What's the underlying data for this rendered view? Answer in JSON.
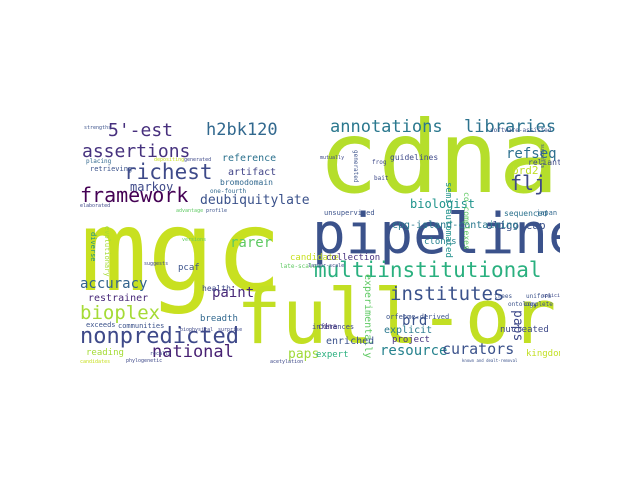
{
  "words": [
    {
      "text": "cdnas",
      "color": "#b5de2b"
    },
    {
      "text": "mgc",
      "color": "#c8e020"
    },
    {
      "text": "pipeline",
      "color": "#3b528b"
    },
    {
      "text": "full-orf",
      "color": "#c2df23"
    },
    {
      "text": "multiinstitutional",
      "color": "#2ab07f"
    },
    {
      "text": "nonpredicted",
      "color": "#3e4989"
    },
    {
      "text": "framework",
      "color": "#440154"
    },
    {
      "text": "annotations",
      "color": "#2a788e"
    },
    {
      "text": "libraries",
      "color": "#2c728e"
    },
    {
      "text": "institutes",
      "color": "#3b528b"
    },
    {
      "text": "richest",
      "color": "#3e4a89"
    },
    {
      "text": "5'-est",
      "color": "#472f7d"
    },
    {
      "text": "h2bk120",
      "color": "#31688e"
    },
    {
      "text": "assertions",
      "color": "#46327e"
    },
    {
      "text": "accuracy",
      "color": "#33638d"
    },
    {
      "text": "bioplex",
      "color": "#a5db36"
    },
    {
      "text": "national",
      "color": "#482173"
    },
    {
      "text": "resource",
      "color": "#26828e"
    },
    {
      "text": "curators",
      "color": "#3b528b"
    },
    {
      "text": "flj",
      "color": "#3e4989"
    },
    {
      "text": "refseq",
      "color": "#2d708e"
    },
    {
      "text": "deubiquitylate",
      "color": "#3b528b"
    },
    {
      "text": "biologist",
      "color": "#1f948c"
    },
    {
      "text": "brd2",
      "color": "#c0df25"
    },
    {
      "text": "markov",
      "color": "#3e4989"
    },
    {
      "text": "paint",
      "color": "#482878"
    },
    {
      "text": "rarer",
      "color": "#5ec962"
    },
    {
      "text": "brd",
      "color": "#3b528b"
    },
    {
      "text": "paps",
      "color": "#3e4989"
    },
    {
      "text": "tsss",
      "color": "#a0da39"
    },
    {
      "text": "experimentally",
      "color": "#5ec962"
    },
    {
      "text": "oligo-cap",
      "color": "#3b528b"
    },
    {
      "text": "cpg-island-containing",
      "color": "#2a788e"
    },
    {
      "text": "artifact",
      "color": "#414487"
    },
    {
      "text": "bromodomain",
      "color": "#31688e"
    },
    {
      "text": "reference",
      "color": "#2c728e"
    },
    {
      "text": "candidate",
      "color": "#c8e020"
    },
    {
      "text": "late-scale",
      "color": "#5ec962"
    },
    {
      "text": "pcaf",
      "color": "#3b528b"
    },
    {
      "text": "restrainer",
      "color": "#482878"
    },
    {
      "text": "breadth",
      "color": "#31688e"
    },
    {
      "text": "enriched",
      "color": "#3b528b"
    },
    {
      "text": "explicit",
      "color": "#2a788e"
    },
    {
      "text": "nucleated",
      "color": "#3e4989"
    },
    {
      "text": "kingdoms",
      "color": "#c2df23"
    },
    {
      "text": "clones",
      "color": "#26828e"
    },
    {
      "text": "collection",
      "color": "#46327e"
    },
    {
      "text": "project",
      "color": "#46327e"
    },
    {
      "text": "expert",
      "color": "#2ab07f"
    },
    {
      "text": "cdna",
      "color": "#482878"
    },
    {
      "text": "reading",
      "color": "#a5db36"
    },
    {
      "text": "orfeome-derived",
      "color": "#3b528b"
    },
    {
      "text": "sequenced",
      "color": "#2c728e"
    },
    {
      "text": "japan",
      "color": "#31688e"
    },
    {
      "text": "semi-automated",
      "color": "#21918c"
    },
    {
      "text": "co-complexes",
      "color": "#5ec962"
    },
    {
      "text": "guidelines",
      "color": "#3e4989"
    },
    {
      "text": "unsupervised",
      "color": "#3b528b"
    },
    {
      "text": "health",
      "color": "#3e4989"
    },
    {
      "text": "evolutionary",
      "color": "#a5db36"
    },
    {
      "text": "exceeds",
      "color": "#3b528b"
    },
    {
      "text": "communities",
      "color": "#3b528b"
    },
    {
      "text": "diverse",
      "color": "#21918c"
    },
    {
      "text": "one-fourth",
      "color": "#31688e"
    },
    {
      "text": "inferences",
      "color": "#3e4989"
    },
    {
      "text": "software-assisted",
      "color": "#3b528b"
    },
    {
      "text": "reliant",
      "color": "#3e4989"
    },
    {
      "text": "retrieving",
      "color": "#3b528b"
    },
    {
      "text": "placing",
      "color": "#31688e"
    },
    {
      "text": "uniform",
      "color": "#3b528b"
    },
    {
      "text": "complete",
      "color": "#3b528b"
    },
    {
      "text": "strengths",
      "color": "#3b528b"
    },
    {
      "text": "depositing",
      "color": "#c8e020"
    },
    {
      "text": "generated",
      "color": "#3e4989"
    },
    {
      "text": "publicly",
      "color": "#3b528b"
    },
    {
      "text": "frog",
      "color": "#3e4989"
    },
    {
      "text": "bait",
      "color": "#3e4989"
    },
    {
      "text": "ontology",
      "color": "#3b528b"
    },
    {
      "text": "trees",
      "color": "#3b528b"
    },
    {
      "text": "elaborated",
      "color": "#3e4989"
    },
    {
      "text": "splicing",
      "color": "#3e4989"
    },
    {
      "text": "versions",
      "color": "#5ec962"
    },
    {
      "text": "advantage",
      "color": "#5ec962"
    },
    {
      "text": "profile",
      "color": "#3b528b"
    },
    {
      "text": "biophysical",
      "color": "#3e4989"
    },
    {
      "text": "phylogenetic",
      "color": "#3e4989"
    },
    {
      "text": "known and dealt-removal",
      "color": "#3b528b"
    },
    {
      "text": "mutually",
      "color": "#3e4989"
    },
    {
      "text": "suggests",
      "color": "#3e4989"
    },
    {
      "text": "transcription-related",
      "color": "#3b528b"
    },
    {
      "text": "acetylation",
      "color": "#3e4989"
    },
    {
      "text": "candidates",
      "color": "#c8e020"
    },
    {
      "text": "surprise",
      "color": "#3e4989"
    },
    {
      "text": "recalls",
      "color": "#3e4989"
    },
    {
      "text": "larger-scale",
      "color": "#3e4989"
    }
  ]
}
